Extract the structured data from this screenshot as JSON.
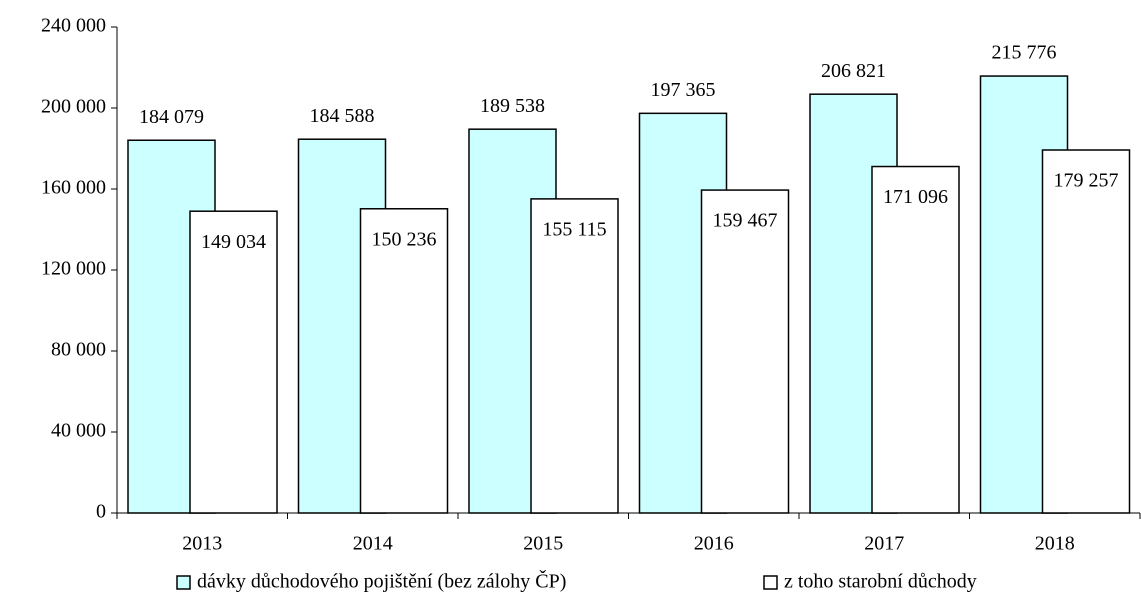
{
  "chart_data": {
    "type": "bar",
    "categories": [
      "2013",
      "2014",
      "2015",
      "2016",
      "2017",
      "2018"
    ],
    "series": [
      {
        "name": "dávky důchodového pojištění (bez zálohy ČP)",
        "color": "#ccffff",
        "values": [
          184079,
          184588,
          189538,
          197365,
          206821,
          215776
        ],
        "value_labels": [
          "184 079",
          "184 588",
          "189 538",
          "197 365",
          "206 821",
          "215 776"
        ]
      },
      {
        "name": "z toho starobní důchody",
        "color": "#ffffff",
        "values": [
          149034,
          150236,
          155115,
          159467,
          171096,
          179257
        ],
        "value_labels": [
          "149 034",
          "150 236",
          "155 115",
          "159 467",
          "171 096",
          "179 257"
        ]
      }
    ],
    "ylim": [
      0,
      240000
    ],
    "yticks": [
      {
        "value": 0,
        "label": "0"
      },
      {
        "value": 40000,
        "label": "40 000"
      },
      {
        "value": 80000,
        "label": "80 000"
      },
      {
        "value": 120000,
        "label": "120 000"
      },
      {
        "value": 160000,
        "label": "160 000"
      },
      {
        "value": 200000,
        "label": "200 000"
      },
      {
        "value": 240000,
        "label": "240 000"
      }
    ],
    "grid": false,
    "legend": "bottom"
  }
}
